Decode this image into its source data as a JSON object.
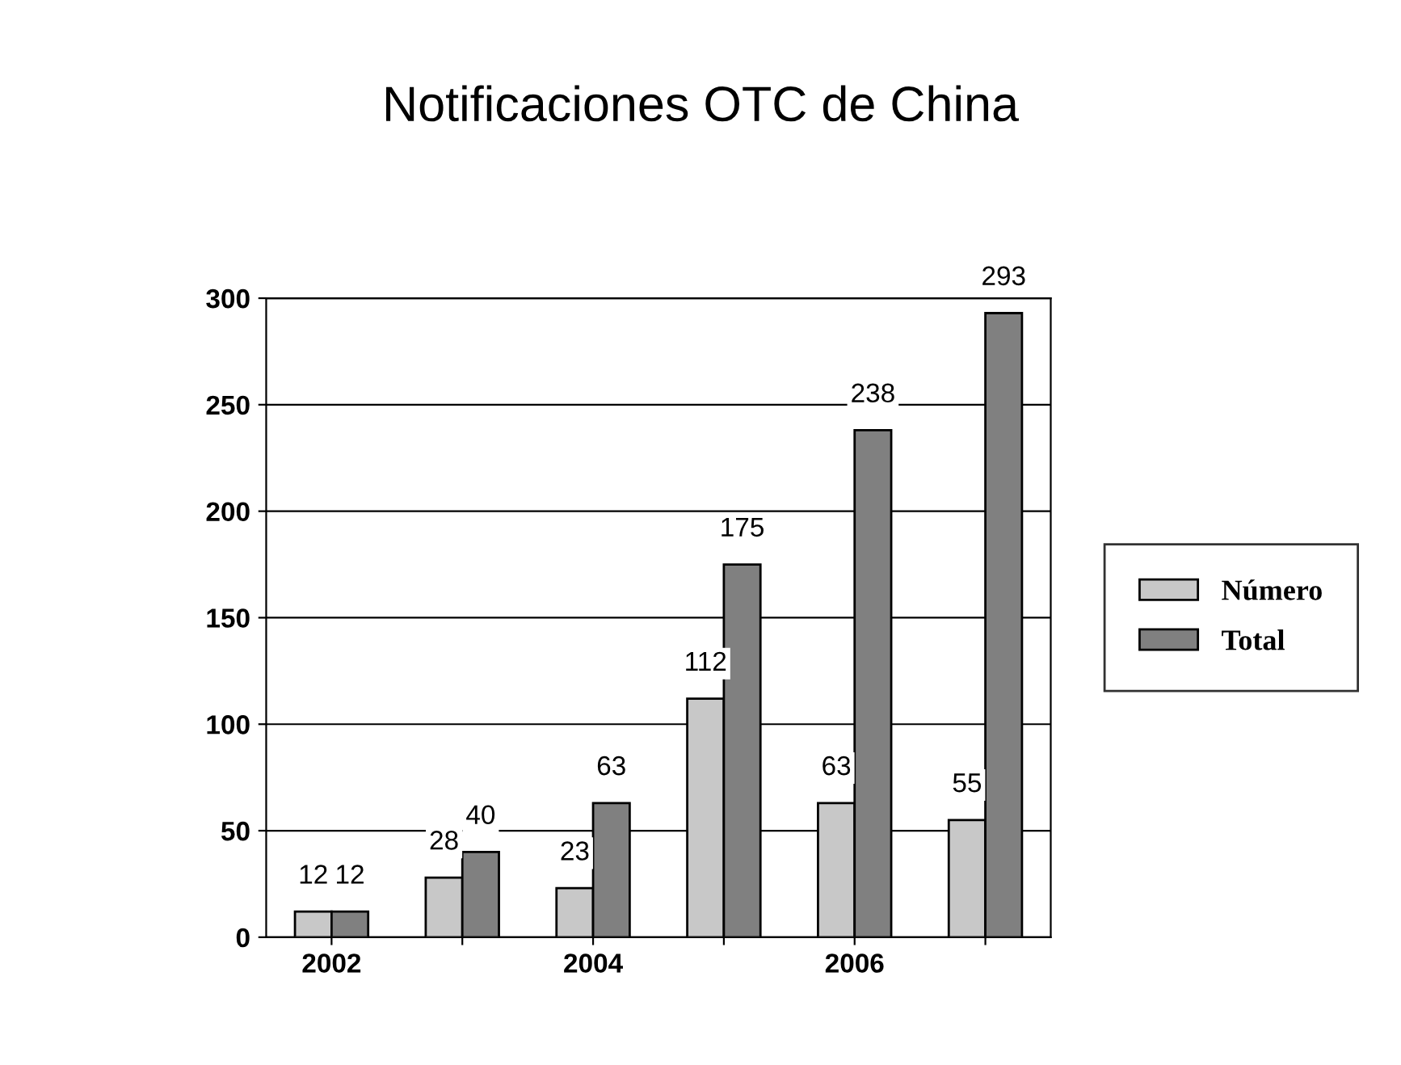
{
  "chart_data": {
    "type": "bar",
    "title": "Notificaciones OTC de China",
    "categories": [
      "2002",
      null,
      "2004",
      null,
      "2006",
      null
    ],
    "series": [
      {
        "name": "Número",
        "color": "#c8c8c8",
        "values": [
          12,
          28,
          23,
          112,
          63,
          55
        ]
      },
      {
        "name": "Total",
        "color": "#808080",
        "values": [
          12,
          40,
          63,
          175,
          238,
          293
        ]
      }
    ],
    "ylim": [
      0,
      300
    ],
    "yticks": [
      0,
      50,
      100,
      150,
      200,
      250,
      300
    ],
    "grid": "y",
    "legend": "right",
    "data_labels": true
  }
}
